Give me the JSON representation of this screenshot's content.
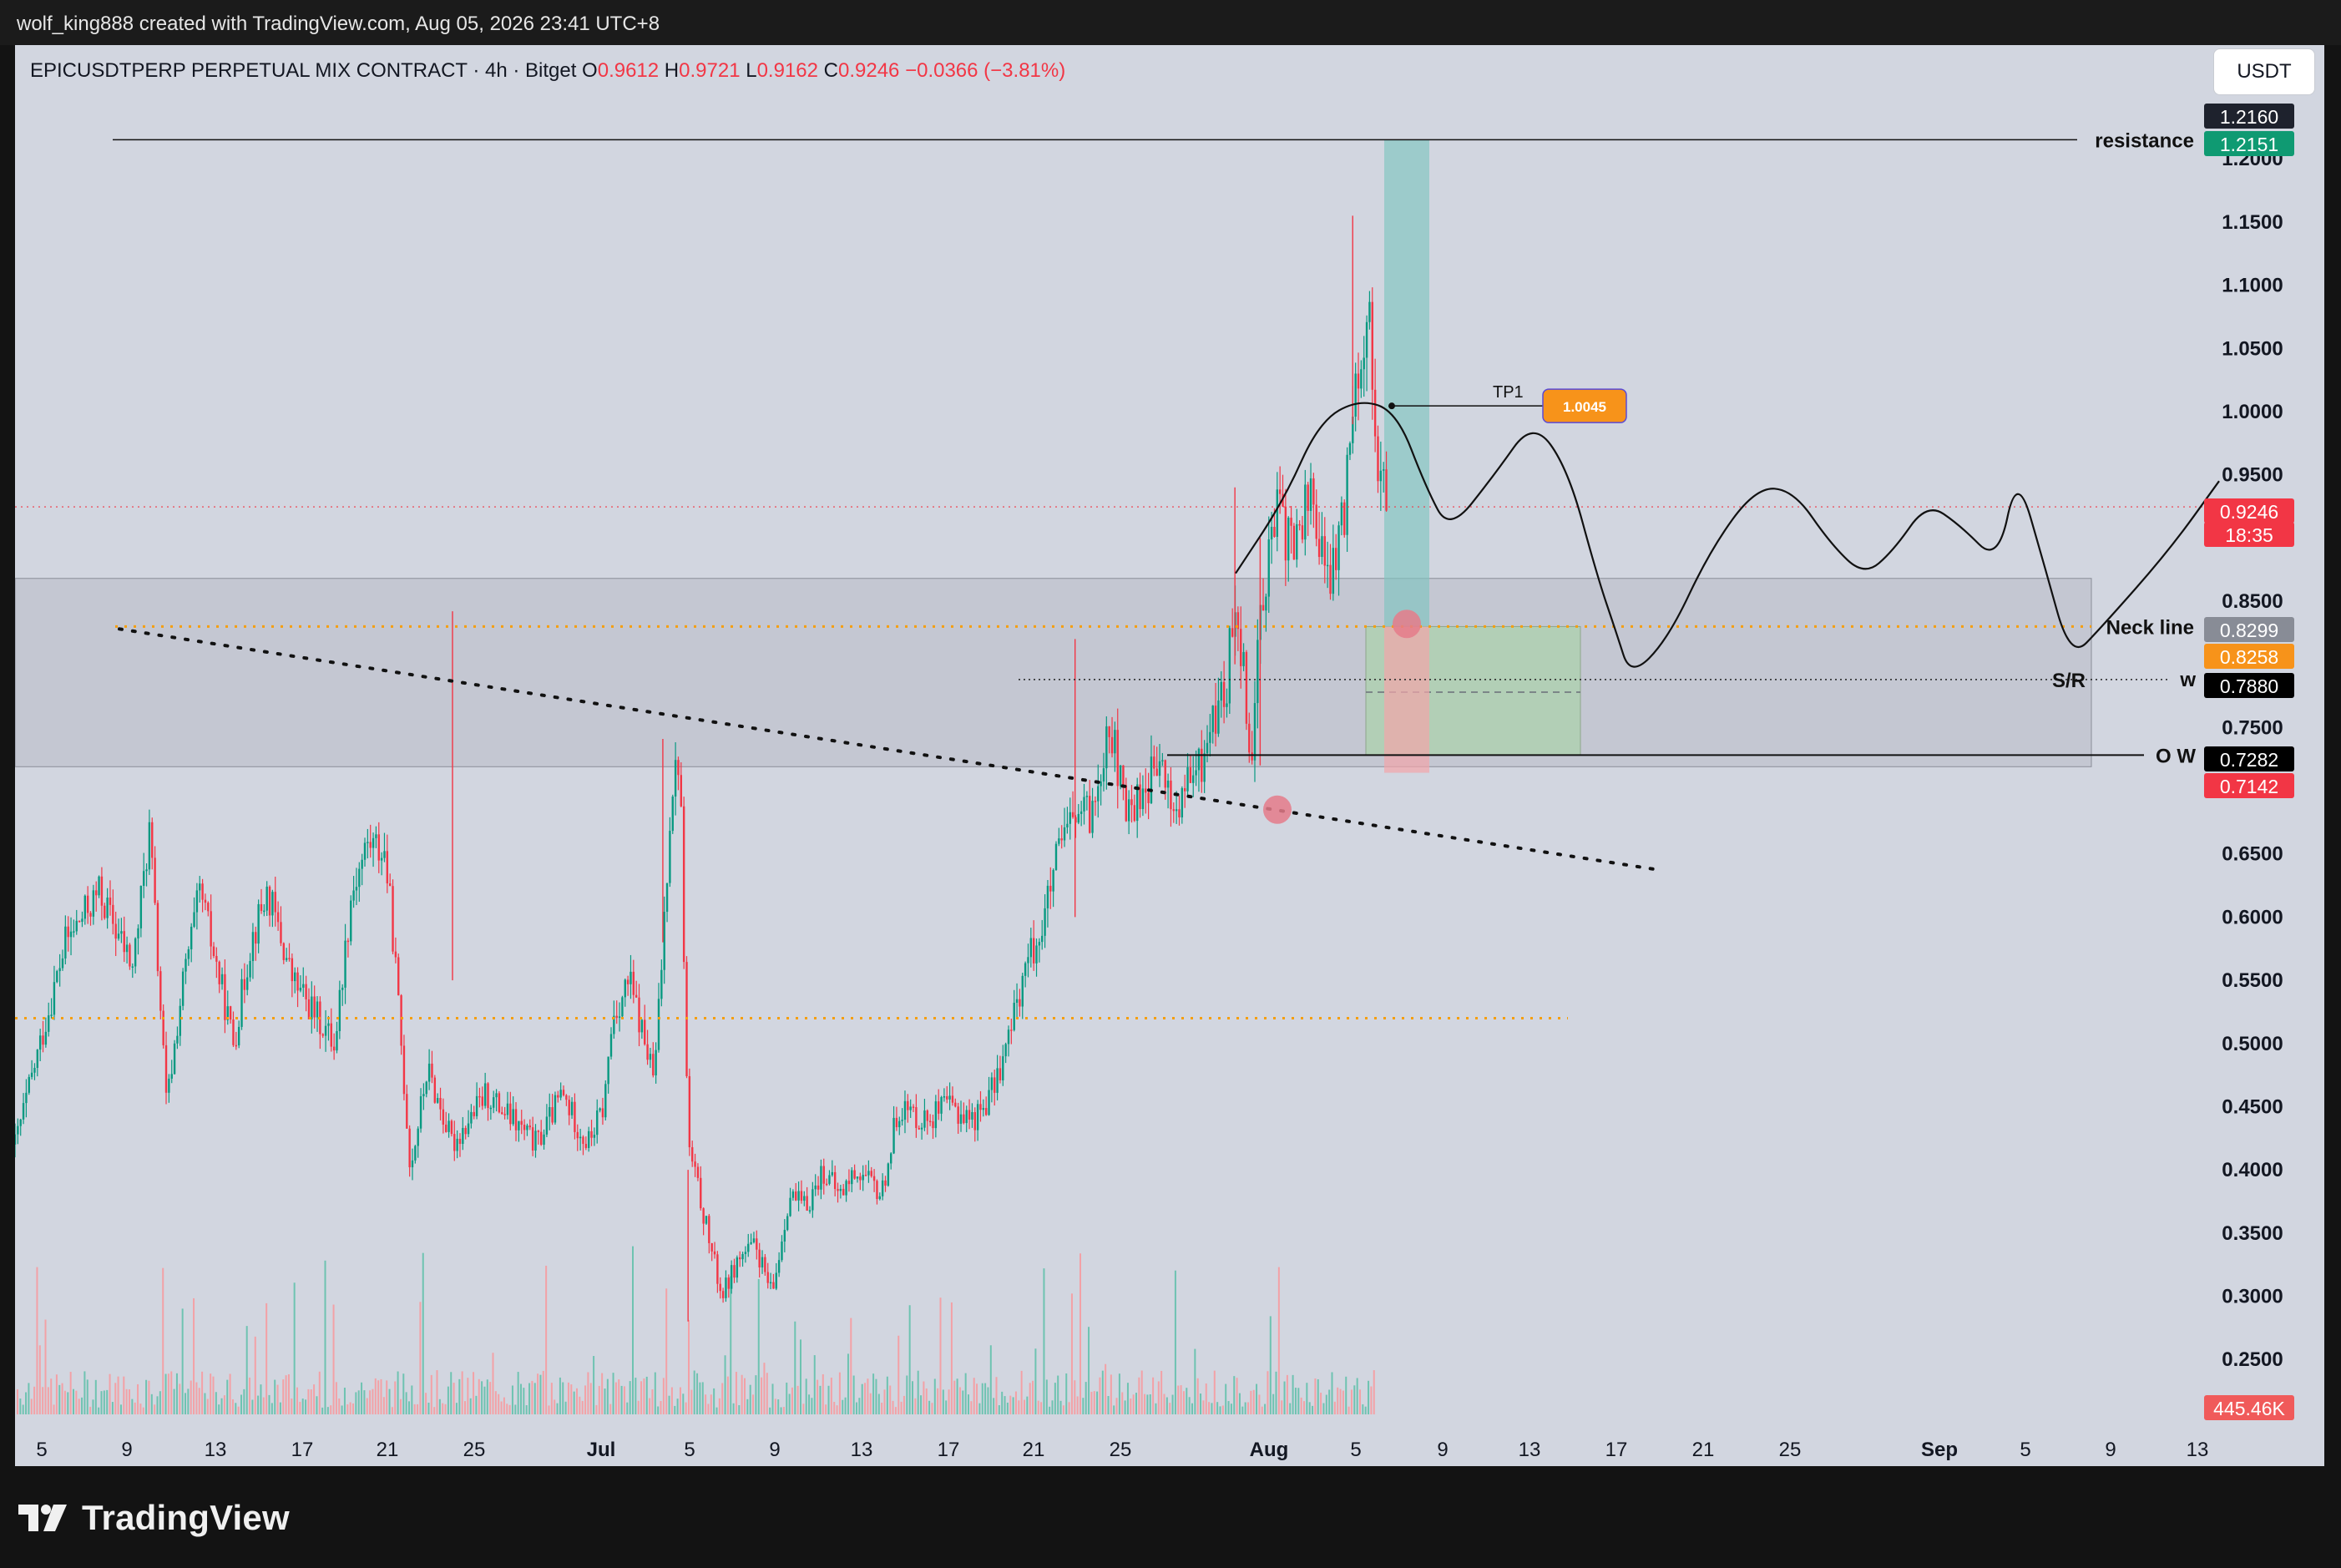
{
  "header": {
    "created_line": "wolf_king888 created with TradingView.com, Aug 05, 2026 23:41 UTC+8"
  },
  "brand": {
    "logo_text": "TradingView"
  },
  "toolbar": {
    "currency_button": "USDT"
  },
  "chart_data": {
    "type": "candlestick",
    "symbol": "EPICUSDTPERP PERPETUAL MIX CONTRACT · 4h · Bitget",
    "ohlc": {
      "o_label": "O",
      "o": "0.9612",
      "h_label": "H",
      "h": "0.9721",
      "l_label": "L",
      "l": "0.9162",
      "c_label": "C",
      "c": "0.9246",
      "change": "−0.0366 (−3.81%)"
    },
    "y_axis": {
      "range": [
        0.19,
        1.29
      ],
      "ticks": [
        "1.2000",
        "1.1500",
        "1.1000",
        "1.0500",
        "1.0000",
        "0.9500",
        "0.8500",
        "0.7500",
        "0.6500",
        "0.6000",
        "0.5500",
        "0.5000",
        "0.4500",
        "0.4000",
        "0.3500",
        "0.3000",
        "0.2500"
      ]
    },
    "x_axis": {
      "ticks": [
        "5",
        "9",
        "13",
        "17",
        "21",
        "25",
        "Jul",
        "5",
        "9",
        "13",
        "17",
        "21",
        "25",
        "Aug",
        "5",
        "9",
        "13",
        "17",
        "21",
        "25",
        "Sep",
        "5",
        "9",
        "13"
      ]
    },
    "price_path": [
      [
        0,
        0.42
      ],
      [
        6,
        0.58
      ],
      [
        10,
        0.62
      ],
      [
        14,
        0.56
      ],
      [
        16,
        0.67
      ],
      [
        18,
        0.45
      ],
      [
        20,
        0.55
      ],
      [
        22,
        0.62
      ],
      [
        26,
        0.5
      ],
      [
        28,
        0.58
      ],
      [
        30,
        0.62
      ],
      [
        33,
        0.55
      ],
      [
        36,
        0.52
      ],
      [
        38,
        0.5
      ],
      [
        40,
        0.62
      ],
      [
        42,
        0.66
      ],
      [
        44,
        0.65
      ],
      [
        45,
        0.58
      ],
      [
        47,
        0.4
      ],
      [
        49,
        0.48
      ],
      [
        52,
        0.42
      ],
      [
        56,
        0.46
      ],
      [
        59,
        0.44
      ],
      [
        62,
        0.42
      ],
      [
        65,
        0.46
      ],
      [
        68,
        0.42
      ],
      [
        70,
        0.45
      ],
      [
        71,
        0.52
      ],
      [
        73,
        0.55
      ],
      [
        76,
        0.47
      ],
      [
        77,
        0.58
      ],
      [
        78,
        0.7
      ],
      [
        79,
        0.73
      ],
      [
        80,
        0.42
      ],
      [
        82,
        0.36
      ],
      [
        84,
        0.3
      ],
      [
        86,
        0.33
      ],
      [
        88,
        0.34
      ],
      [
        90,
        0.3
      ],
      [
        92,
        0.38
      ],
      [
        94,
        0.37
      ],
      [
        96,
        0.4
      ],
      [
        98,
        0.38
      ],
      [
        100,
        0.4
      ],
      [
        103,
        0.38
      ],
      [
        105,
        0.45
      ],
      [
        108,
        0.44
      ],
      [
        111,
        0.45
      ],
      [
        114,
        0.44
      ],
      [
        116,
        0.46
      ],
      [
        118,
        0.5
      ],
      [
        120,
        0.56
      ],
      [
        122,
        0.59
      ],
      [
        124,
        0.65
      ],
      [
        126,
        0.68
      ],
      [
        128,
        0.68
      ],
      [
        130,
        0.76
      ],
      [
        132,
        0.68
      ],
      [
        134,
        0.7
      ],
      [
        136,
        0.72
      ],
      [
        138,
        0.68
      ],
      [
        139,
        0.7
      ],
      [
        141,
        0.72
      ],
      [
        142,
        0.75
      ],
      [
        144,
        0.78
      ],
      [
        145,
        0.86
      ],
      [
        146,
        0.8
      ],
      [
        147,
        0.72
      ],
      [
        148,
        0.85
      ],
      [
        150,
        0.92
      ],
      [
        152,
        0.89
      ],
      [
        154,
        0.94
      ],
      [
        156,
        0.86
      ],
      [
        158,
        0.92
      ],
      [
        159,
        1.02
      ],
      [
        160,
        1.05
      ],
      [
        161,
        1.07
      ],
      [
        162,
        0.96
      ],
      [
        163,
        0.92
      ]
    ],
    "volume_last": "445.46K",
    "annotations": {
      "resistance": "resistance",
      "neck_line": "Neck line",
      "sr": "S/R",
      "w": "w",
      "ow": "O W",
      "tp1_label": "TP1",
      "tp1_value": "1.0045"
    },
    "levels": {
      "resistance": 1.2151,
      "neck_line": 0.8299,
      "orange_dotted_high": 0.8258,
      "w": 0.788,
      "ow": 0.7282,
      "stop": 0.7142,
      "orange_dotted_low": 0.52,
      "current": 0.9246,
      "top_label": 1.216,
      "tp1": 1.0045
    },
    "price_labels": [
      {
        "text": "1.2160",
        "bg": "#1e222d",
        "fg": "#ffffff"
      },
      {
        "text": "1.2151",
        "bg": "#0f9a72",
        "fg": "#ffffff"
      },
      {
        "text": "0.9246",
        "bg": "#f23645",
        "fg": "#ffffff"
      },
      {
        "text": "18:35",
        "bg": "#f23645",
        "fg": "#ffffff"
      },
      {
        "text": "0.8299",
        "bg": "#888c96",
        "fg": "#ffffff"
      },
      {
        "text": "0.8258",
        "bg": "#f7931a",
        "fg": "#ffffff"
      },
      {
        "text": "0.7880",
        "bg": "#000000",
        "fg": "#ffffff"
      },
      {
        "text": "0.7282",
        "bg": "#000000",
        "fg": "#ffffff"
      },
      {
        "text": "0.7142",
        "bg": "#f23645",
        "fg": "#ffffff"
      },
      {
        "text": "445.46K",
        "bg": "#f05a5a",
        "fg": "#ffffff"
      }
    ],
    "colors": {
      "up": "#089981",
      "down": "#f23645",
      "background": "#d2d6e0",
      "orange": "#f59e0b"
    }
  }
}
